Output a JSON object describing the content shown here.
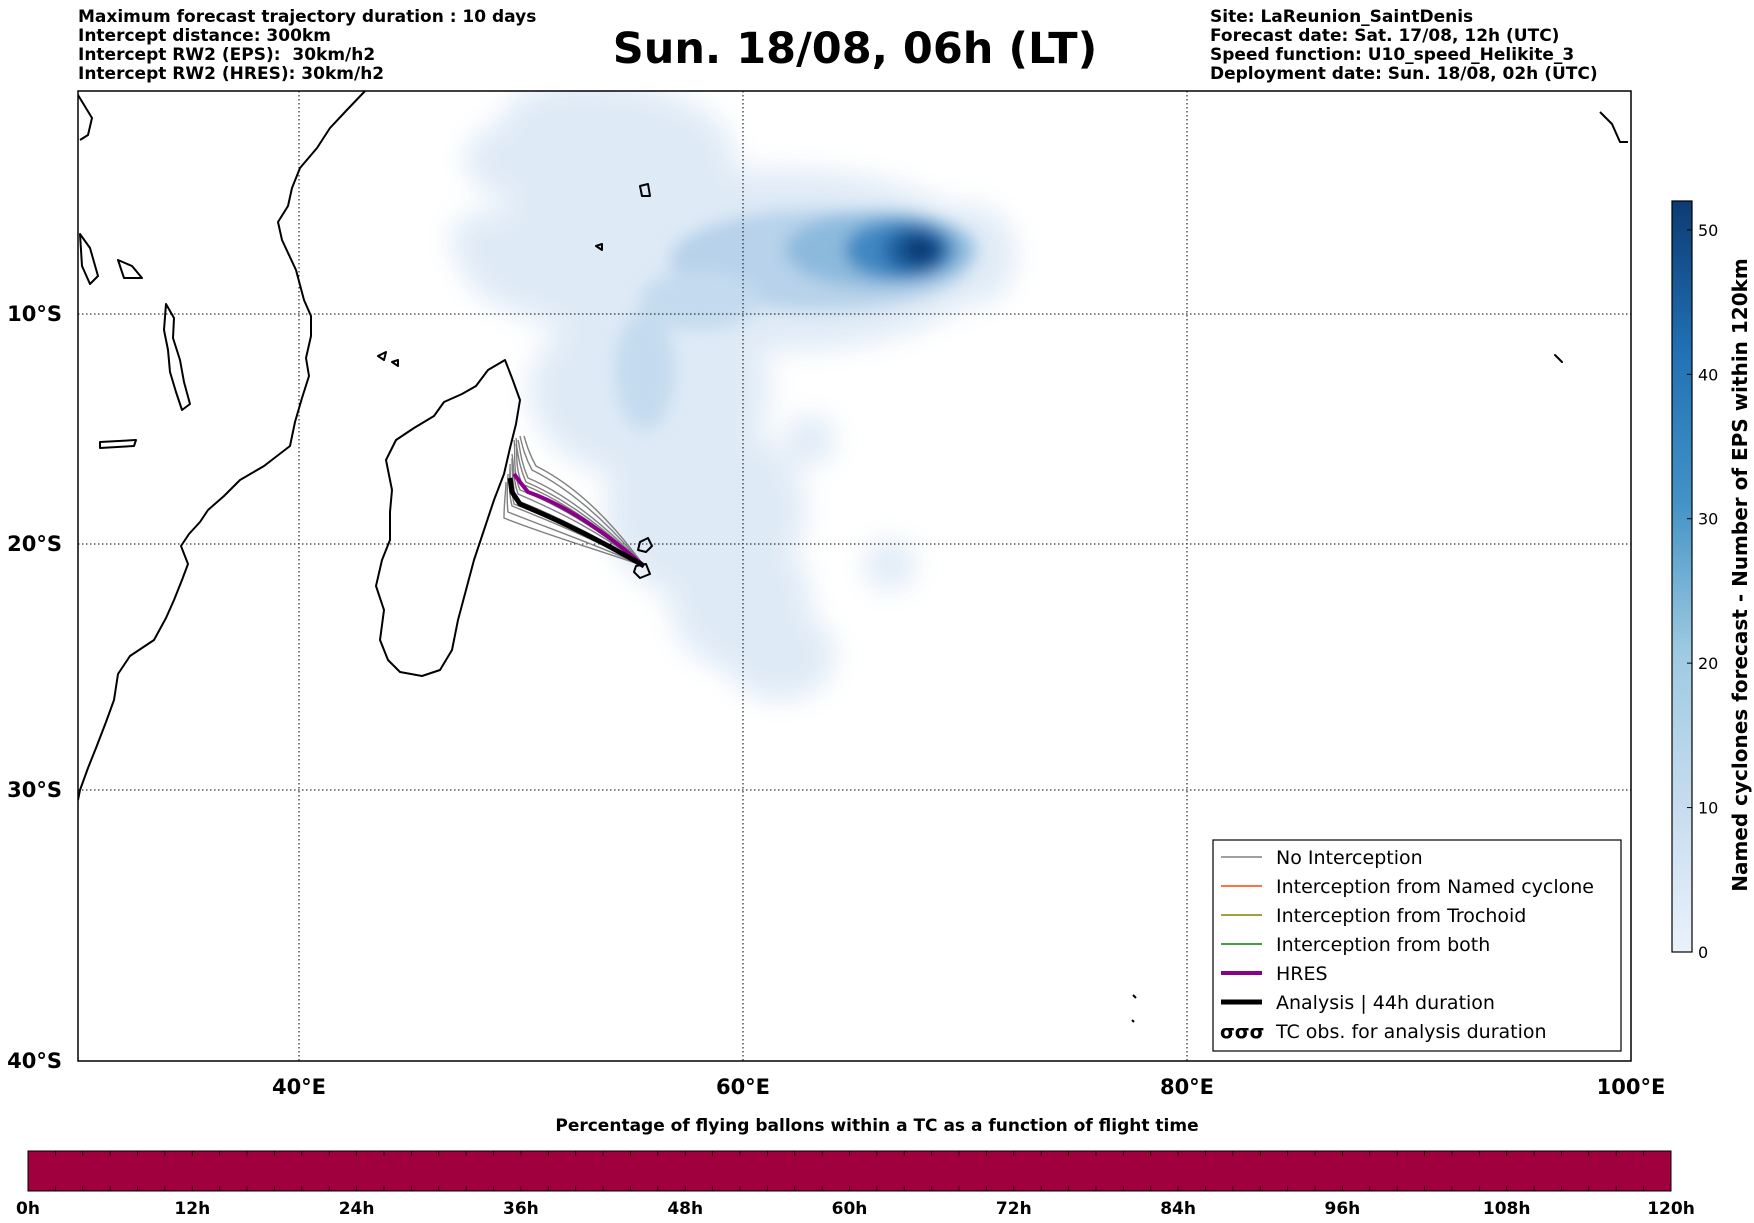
{
  "header_left": [
    "Maximum forecast trajectory duration : 10 days",
    "Intercept distance: 300km",
    "Intercept RW2 (EPS):  30km/h2",
    "Intercept RW2 (HRES): 30km/h2"
  ],
  "title": "Sun. 18/08, 06h (LT)",
  "header_right": [
    "Site: LaReunion_SaintDenis",
    "Forecast date: Sat. 17/08, 12h (UTC)",
    "Speed function: U10_speed_Helikite_3",
    "Deployment date: Sun. 18/08, 02h (UTC)"
  ],
  "map": {
    "lat_ticks": [
      {
        "value": -10,
        "label": "10°S"
      },
      {
        "value": -20,
        "label": "20°S"
      },
      {
        "value": -30,
        "label": "30°S"
      },
      {
        "value": -40,
        "label": "40°S"
      }
    ],
    "lon_ticks": [
      {
        "value": 40,
        "label": "40°E"
      },
      {
        "value": 60,
        "label": "60°E"
      },
      {
        "value": 80,
        "label": "80°E"
      },
      {
        "value": 100,
        "label": "100°E"
      }
    ],
    "lon_range": [
      30,
      100
    ],
    "lat_range": [
      -0.5,
      -40
    ]
  },
  "legend": {
    "items": [
      {
        "label": "No Interception",
        "color": "#808080",
        "style": "thin"
      },
      {
        "label": "Interception from Named cyclone",
        "color": "#ff4500",
        "style": "thin"
      },
      {
        "label": "Interception from Trochoid",
        "color": "#808000",
        "style": "thin"
      },
      {
        "label": "Interception from both",
        "color": "#008000",
        "style": "thin"
      },
      {
        "label": "HRES",
        "color": "#8b008b",
        "style": "thick"
      },
      {
        "label": "Analysis | 44h duration",
        "color": "#000000",
        "style": "thick"
      },
      {
        "label": "TC obs. for analysis duration",
        "color": "#000000",
        "style": "symbol",
        "symbol": "σσσ"
      }
    ]
  },
  "colorbar": {
    "label": "Named cyclones forecast - Number of EPS within 120km",
    "ticks": [
      0,
      10,
      20,
      30,
      40,
      50
    ],
    "range": [
      0,
      52
    ],
    "color_low": "#eaf2fb",
    "color_high": "#0d3b73"
  },
  "time_bar": {
    "caption": "Percentage of flying ballons within a TC as a function of flight time",
    "ticks": [
      "0h",
      "12h",
      "24h",
      "36h",
      "48h",
      "60h",
      "72h",
      "84h",
      "96h",
      "108h",
      "120h"
    ],
    "color": "#a0003e",
    "percent_value": 100
  }
}
